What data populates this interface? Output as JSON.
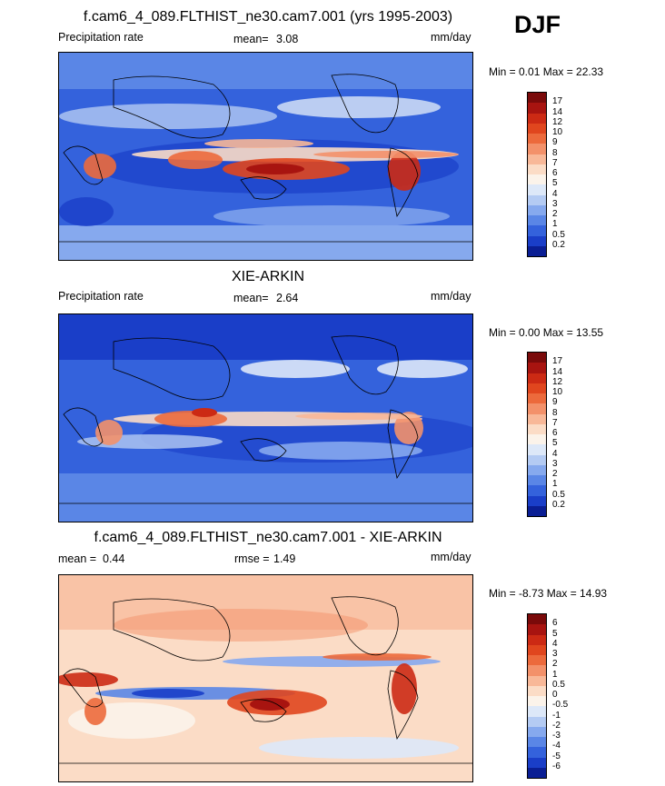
{
  "season": "DJF",
  "panels": [
    {
      "title": "f.cam6_4_089.FLTHIST_ne30.cam7.001 (yrs 1995-2003)",
      "left_label": "Precipitation rate",
      "mean_label": "mean=",
      "mean_value": "3.08",
      "units": "mm/day",
      "minmax": "Min =  0.01 Max = 22.33",
      "scale": "precip"
    },
    {
      "title": "XIE-ARKIN",
      "left_label": "Precipitation rate",
      "mean_label": "mean=",
      "mean_value": "2.64",
      "units": "mm/day",
      "minmax": "Min =  0.00 Max = 13.55",
      "scale": "precip"
    },
    {
      "title": "f.cam6_4_089.FLTHIST_ne30.cam7.001 - XIE-ARKIN",
      "left_label": "mean =",
      "left_value": "0.44",
      "rmse_label": "rmse =",
      "rmse_value": "1.49",
      "units": "mm/day",
      "minmax": "Min = -8.73 Max = 14.93",
      "scale": "diff"
    }
  ],
  "colorbars": {
    "precip": {
      "labels": [
        "17",
        "14",
        "12",
        "10",
        "9",
        "8",
        "7",
        "6",
        "5",
        "4",
        "3",
        "2",
        "1",
        "0.5",
        "0.2"
      ],
      "colors": [
        "#7a0a0a",
        "#a81410",
        "#cc2a14",
        "#e0461e",
        "#ec6a3c",
        "#f3916a",
        "#f8b898",
        "#fbdcc6",
        "#fbf3ea",
        "#dde8f8",
        "#b4cbf3",
        "#86a9ee",
        "#5a86e6",
        "#3462dc",
        "#1a3ec8",
        "#0a1e94"
      ]
    },
    "diff": {
      "labels": [
        "6",
        "5",
        "4",
        "3",
        "2",
        "1",
        "0.5",
        "0",
        "-0.5",
        "-1",
        "-2",
        "-3",
        "-4",
        "-5",
        "-6"
      ],
      "colors": [
        "#7a0a0a",
        "#a81410",
        "#cc2a14",
        "#e0461e",
        "#ec6a3c",
        "#f3916a",
        "#f8b898",
        "#fbdcc6",
        "#fbf3ea",
        "#dde8f8",
        "#b4cbf3",
        "#86a9ee",
        "#5a86e6",
        "#3462dc",
        "#1a3ec8",
        "#0a1e94"
      ]
    }
  }
}
